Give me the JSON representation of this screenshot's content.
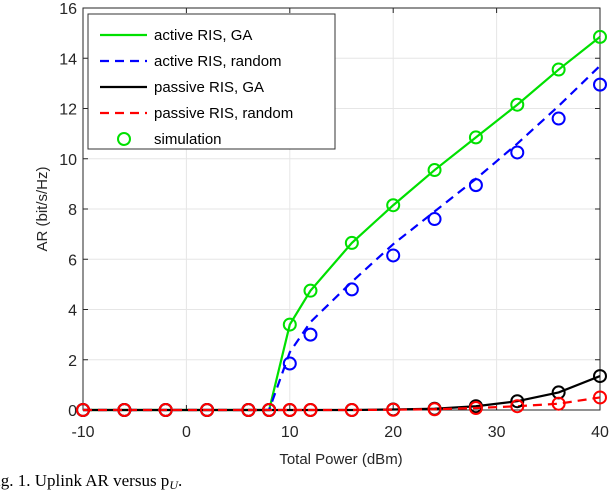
{
  "chart_data": {
    "type": "line",
    "title": "",
    "xlabel": "Total Power (dBm)",
    "ylabel": "AR (bit/s/Hz)",
    "xlim": [
      -10,
      40
    ],
    "ylim": [
      0,
      16
    ],
    "xticks": [
      -10,
      0,
      10,
      20,
      30,
      40
    ],
    "yticks": [
      0,
      2,
      4,
      6,
      8,
      10,
      12,
      14,
      16
    ],
    "grid": true,
    "legend_position": "top-left",
    "x": [
      -10,
      -6,
      -2,
      2,
      6,
      8,
      10,
      12,
      16,
      20,
      24,
      28,
      32,
      36,
      40
    ],
    "series": [
      {
        "name": "active RIS, GA",
        "color": "#00e000",
        "dash": false,
        "values": [
          0,
          0,
          0,
          0,
          0,
          0,
          3.4,
          4.75,
          6.65,
          8.15,
          9.55,
          10.85,
          12.15,
          13.55,
          14.85
        ]
      },
      {
        "name": "active RIS, random",
        "color": "#0000ff",
        "dash": true,
        "values": [
          0,
          0,
          0,
          0,
          0,
          0,
          2.3,
          3.5,
          5.1,
          6.6,
          7.9,
          9.2,
          10.6,
          12.1,
          13.7
        ]
      },
      {
        "name": "passive RIS, GA",
        "color": "#000000",
        "dash": false,
        "values": [
          0,
          0,
          0,
          0,
          0,
          0,
          0,
          0,
          0,
          0.02,
          0.05,
          0.15,
          0.35,
          0.7,
          1.35
        ]
      },
      {
        "name": "passive RIS, random",
        "color": "#ff0000",
        "dash": true,
        "values": [
          0,
          0,
          0,
          0,
          0,
          0,
          0,
          0,
          0,
          0.01,
          0.03,
          0.08,
          0.15,
          0.25,
          0.5
        ]
      }
    ],
    "simulation": {
      "name": "simulation",
      "color": "#00e000",
      "points": [
        {
          "series": "active RIS, GA",
          "color": "#00e000",
          "values": [
            0,
            0,
            0,
            0,
            0,
            0,
            3.4,
            4.75,
            6.65,
            8.15,
            9.55,
            10.85,
            12.15,
            13.55,
            14.85
          ]
        },
        {
          "series": "active RIS, random",
          "color": "#0000ff",
          "values": [
            0,
            0,
            0,
            0,
            0,
            0,
            1.85,
            3.0,
            4.8,
            6.15,
            7.6,
            8.95,
            10.25,
            11.6,
            12.95
          ]
        },
        {
          "series": "passive RIS, GA",
          "color": "#000000",
          "values": [
            0,
            0,
            0,
            0,
            0,
            0,
            0,
            0,
            0,
            0.02,
            0.05,
            0.15,
            0.35,
            0.7,
            1.35
          ]
        },
        {
          "series": "passive RIS, random",
          "color": "#ff0000",
          "values": [
            0,
            0,
            0,
            0,
            0,
            0,
            0,
            0,
            0,
            0.01,
            0.03,
            0.08,
            0.15,
            0.25,
            0.5
          ]
        }
      ]
    }
  },
  "caption": "ig. 1.  Uplink AR versus p",
  "caption_sub": "U",
  "caption_end": "."
}
